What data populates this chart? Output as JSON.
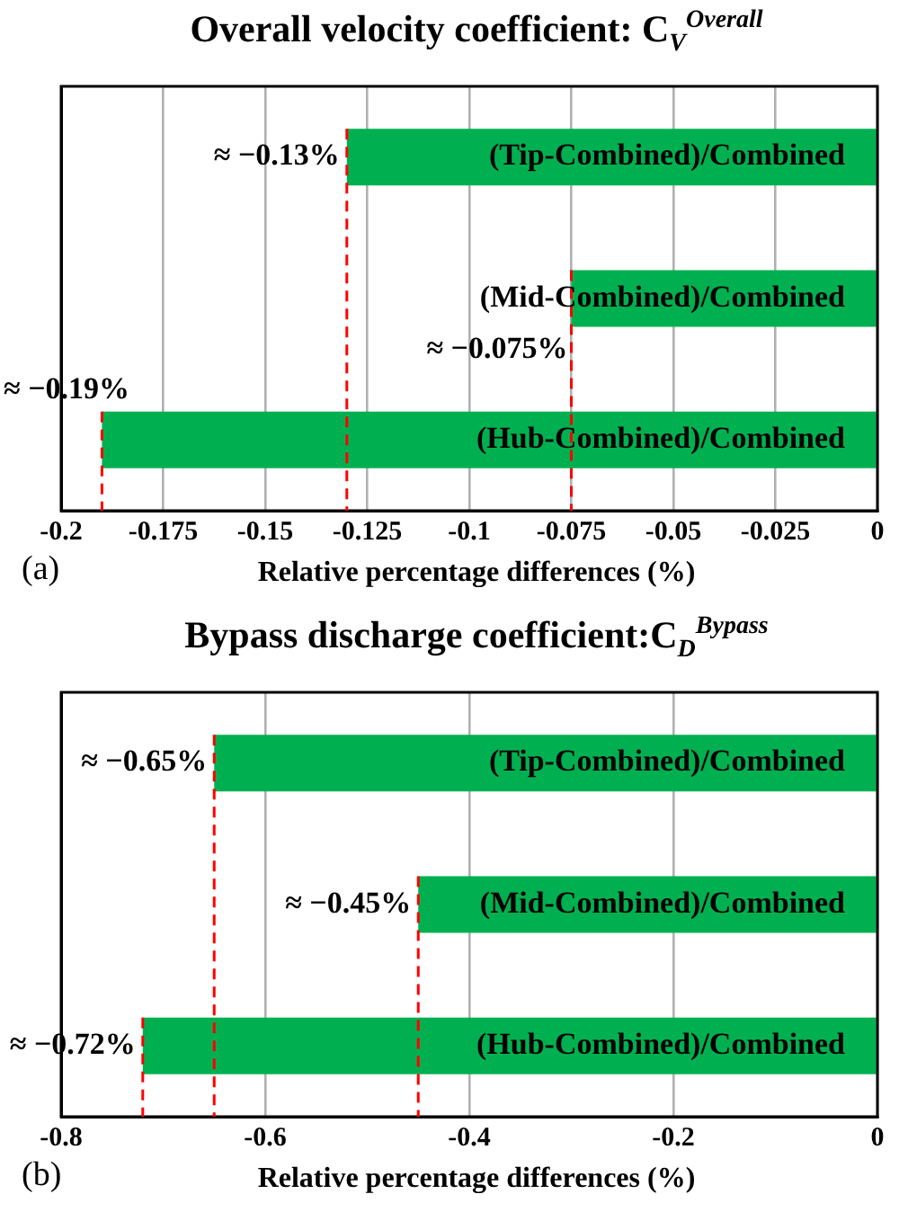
{
  "chart_data": [
    {
      "type": "bar",
      "orientation": "horizontal",
      "title": "Overall velocity coefficient: C$_{V}$$^{Overall}$",
      "xlabel": "Relative percentage differences (%)",
      "categories": [
        "(Tip-Combined)/Combined",
        "(Mid-Combined)/Combined",
        "(Hub-Combined)/Combined"
      ],
      "values": [
        -0.13,
        -0.075,
        -0.19
      ],
      "value_labels": [
        "≈ −0.13%",
        "≈ −0.075%",
        "≈ −0.19%"
      ],
      "color": "#00b050",
      "xlim": [
        -0.2,
        0
      ],
      "xticks": [
        -0.2,
        -0.175,
        -0.15,
        -0.125,
        -0.1,
        -0.075,
        -0.05,
        -0.025,
        0
      ],
      "grid": "x",
      "tick_labels": "x",
      "ref_lines": [
        {
          "axis": "x",
          "value": -0.13,
          "color": "#ff0000",
          "line_style": "dashed"
        },
        {
          "axis": "x",
          "value": -0.075,
          "color": "#ff0000",
          "line_style": "dashed"
        },
        {
          "axis": "x",
          "value": -0.19,
          "color": "#ff0000",
          "line_style": "dashed"
        }
      ],
      "annotations": [
        "(a)"
      ]
    },
    {
      "type": "bar",
      "orientation": "horizontal",
      "title": "Bypass discharge coefficient:C$_{D}$$^{Bypass}$",
      "xlabel": "Relative percentage differences (%)",
      "categories": [
        "(Tip-Combined)/Combined",
        "(Mid-Combined)/Combined",
        "(Hub-Combined)/Combined"
      ],
      "values": [
        -0.65,
        -0.45,
        -0.72
      ],
      "value_labels": [
        "≈ −0.65%",
        "≈ −0.45%",
        "≈ −0.72%"
      ],
      "color": "#00b050",
      "xlim": [
        -0.8,
        0
      ],
      "xticks": [
        -0.8,
        -0.6,
        -0.4,
        -0.2,
        0
      ],
      "grid": "x",
      "tick_labels": "x",
      "ref_lines": [
        {
          "axis": "x",
          "value": -0.65,
          "color": "#ff0000",
          "line_style": "dashed"
        },
        {
          "axis": "x",
          "value": -0.45,
          "color": "#ff0000",
          "line_style": "dashed"
        },
        {
          "axis": "x",
          "value": -0.72,
          "color": "#ff0000",
          "line_style": "dashed"
        }
      ],
      "annotations": [
        "(b)"
      ]
    }
  ]
}
